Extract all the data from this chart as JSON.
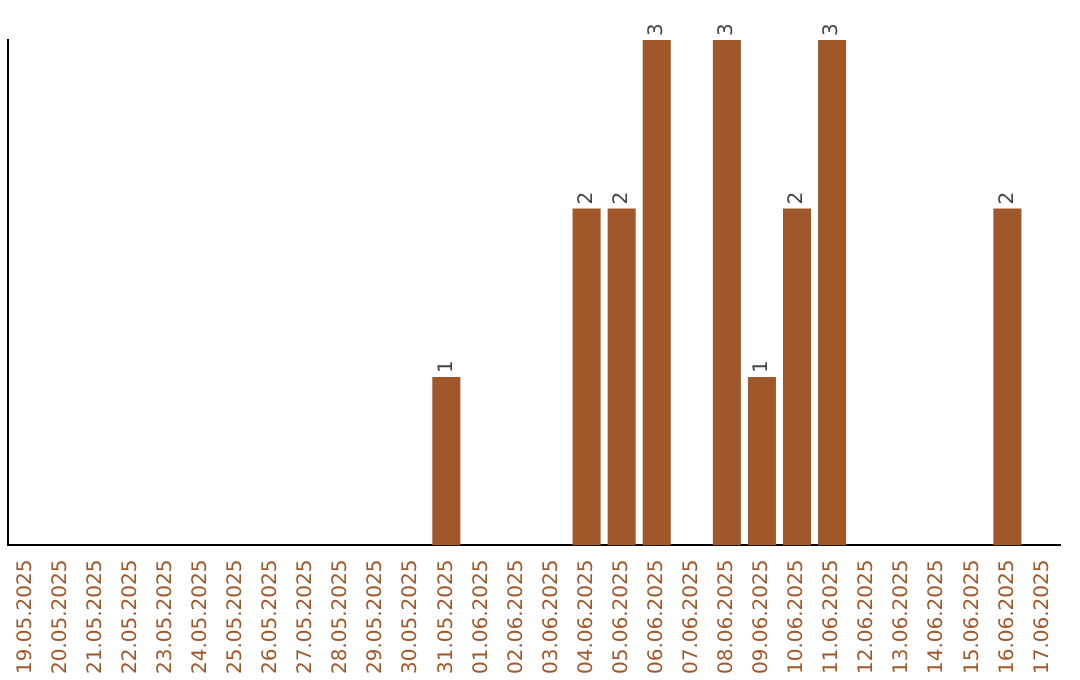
{
  "chart_data": {
    "type": "bar",
    "categories": [
      "19.05.2025",
      "20.05.2025",
      "21.05.2025",
      "22.05.2025",
      "23.05.2025",
      "24.05.2025",
      "25.05.2025",
      "26.05.2025",
      "27.05.2025",
      "28.05.2025",
      "29.05.2025",
      "30.05.2025",
      "31.05.2025",
      "01.06.2025",
      "02.06.2025",
      "03.06.2025",
      "04.06.2025",
      "05.06.2025",
      "06.06.2025",
      "07.06.2025",
      "08.06.2025",
      "09.06.2025",
      "10.06.2025",
      "11.06.2025",
      "12.06.2025",
      "13.06.2025",
      "14.06.2025",
      "15.06.2025",
      "16.06.2025",
      "17.06.2025"
    ],
    "values": [
      null,
      null,
      null,
      null,
      null,
      null,
      null,
      null,
      null,
      null,
      null,
      null,
      1,
      null,
      null,
      null,
      2,
      2,
      3,
      null,
      3,
      1,
      2,
      3,
      null,
      null,
      null,
      null,
      2,
      null
    ],
    "value_labels": [
      null,
      null,
      null,
      null,
      null,
      null,
      null,
      null,
      null,
      null,
      null,
      null,
      "1",
      null,
      null,
      null,
      "2",
      "2",
      "3",
      null,
      "3",
      "1",
      "2",
      "3",
      null,
      null,
      null,
      null,
      "2",
      null
    ],
    "color": "#a0582a",
    "tick_labels": "x",
    "grid": false,
    "legend": false
  }
}
